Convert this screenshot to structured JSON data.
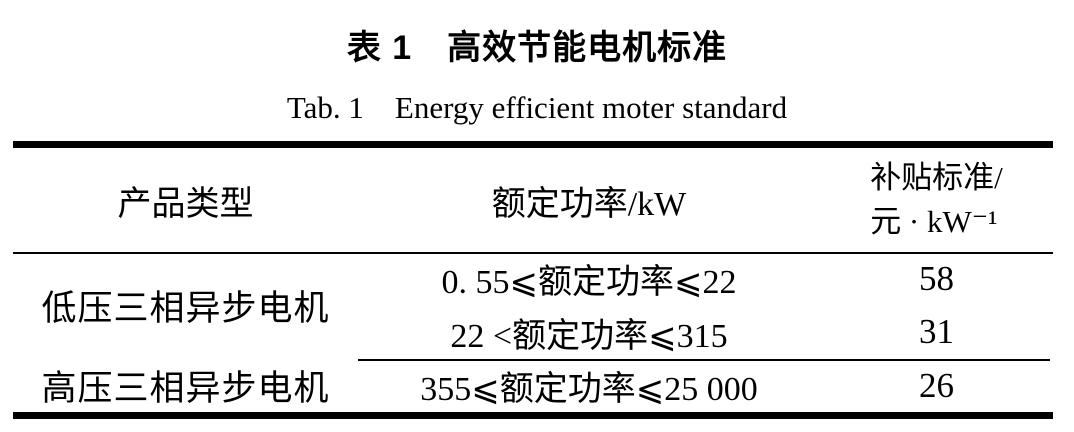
{
  "title": "表 1　高效节能电机标准",
  "subtitle": "Tab. 1　Energy efficient moter standard",
  "table": {
    "header": {
      "product_type": "产品类型",
      "rated_power": "额定功率/kW",
      "subsidy_line1": "补贴标准/",
      "subsidy_line2": "元 · kW⁻¹"
    },
    "rows": [
      {
        "product": "低压三相异步电机",
        "power": "0. 55⩽额定功率⩽22",
        "subsidy": "58"
      },
      {
        "product": "",
        "power": "22 <额定功率⩽315",
        "subsidy": "31"
      },
      {
        "product": "高压三相异步电机",
        "power": "355⩽额定功率⩽25 000",
        "subsidy": "26"
      }
    ],
    "colors": {
      "text": "#000000",
      "rule": "#000000",
      "background": "#ffffff"
    }
  }
}
